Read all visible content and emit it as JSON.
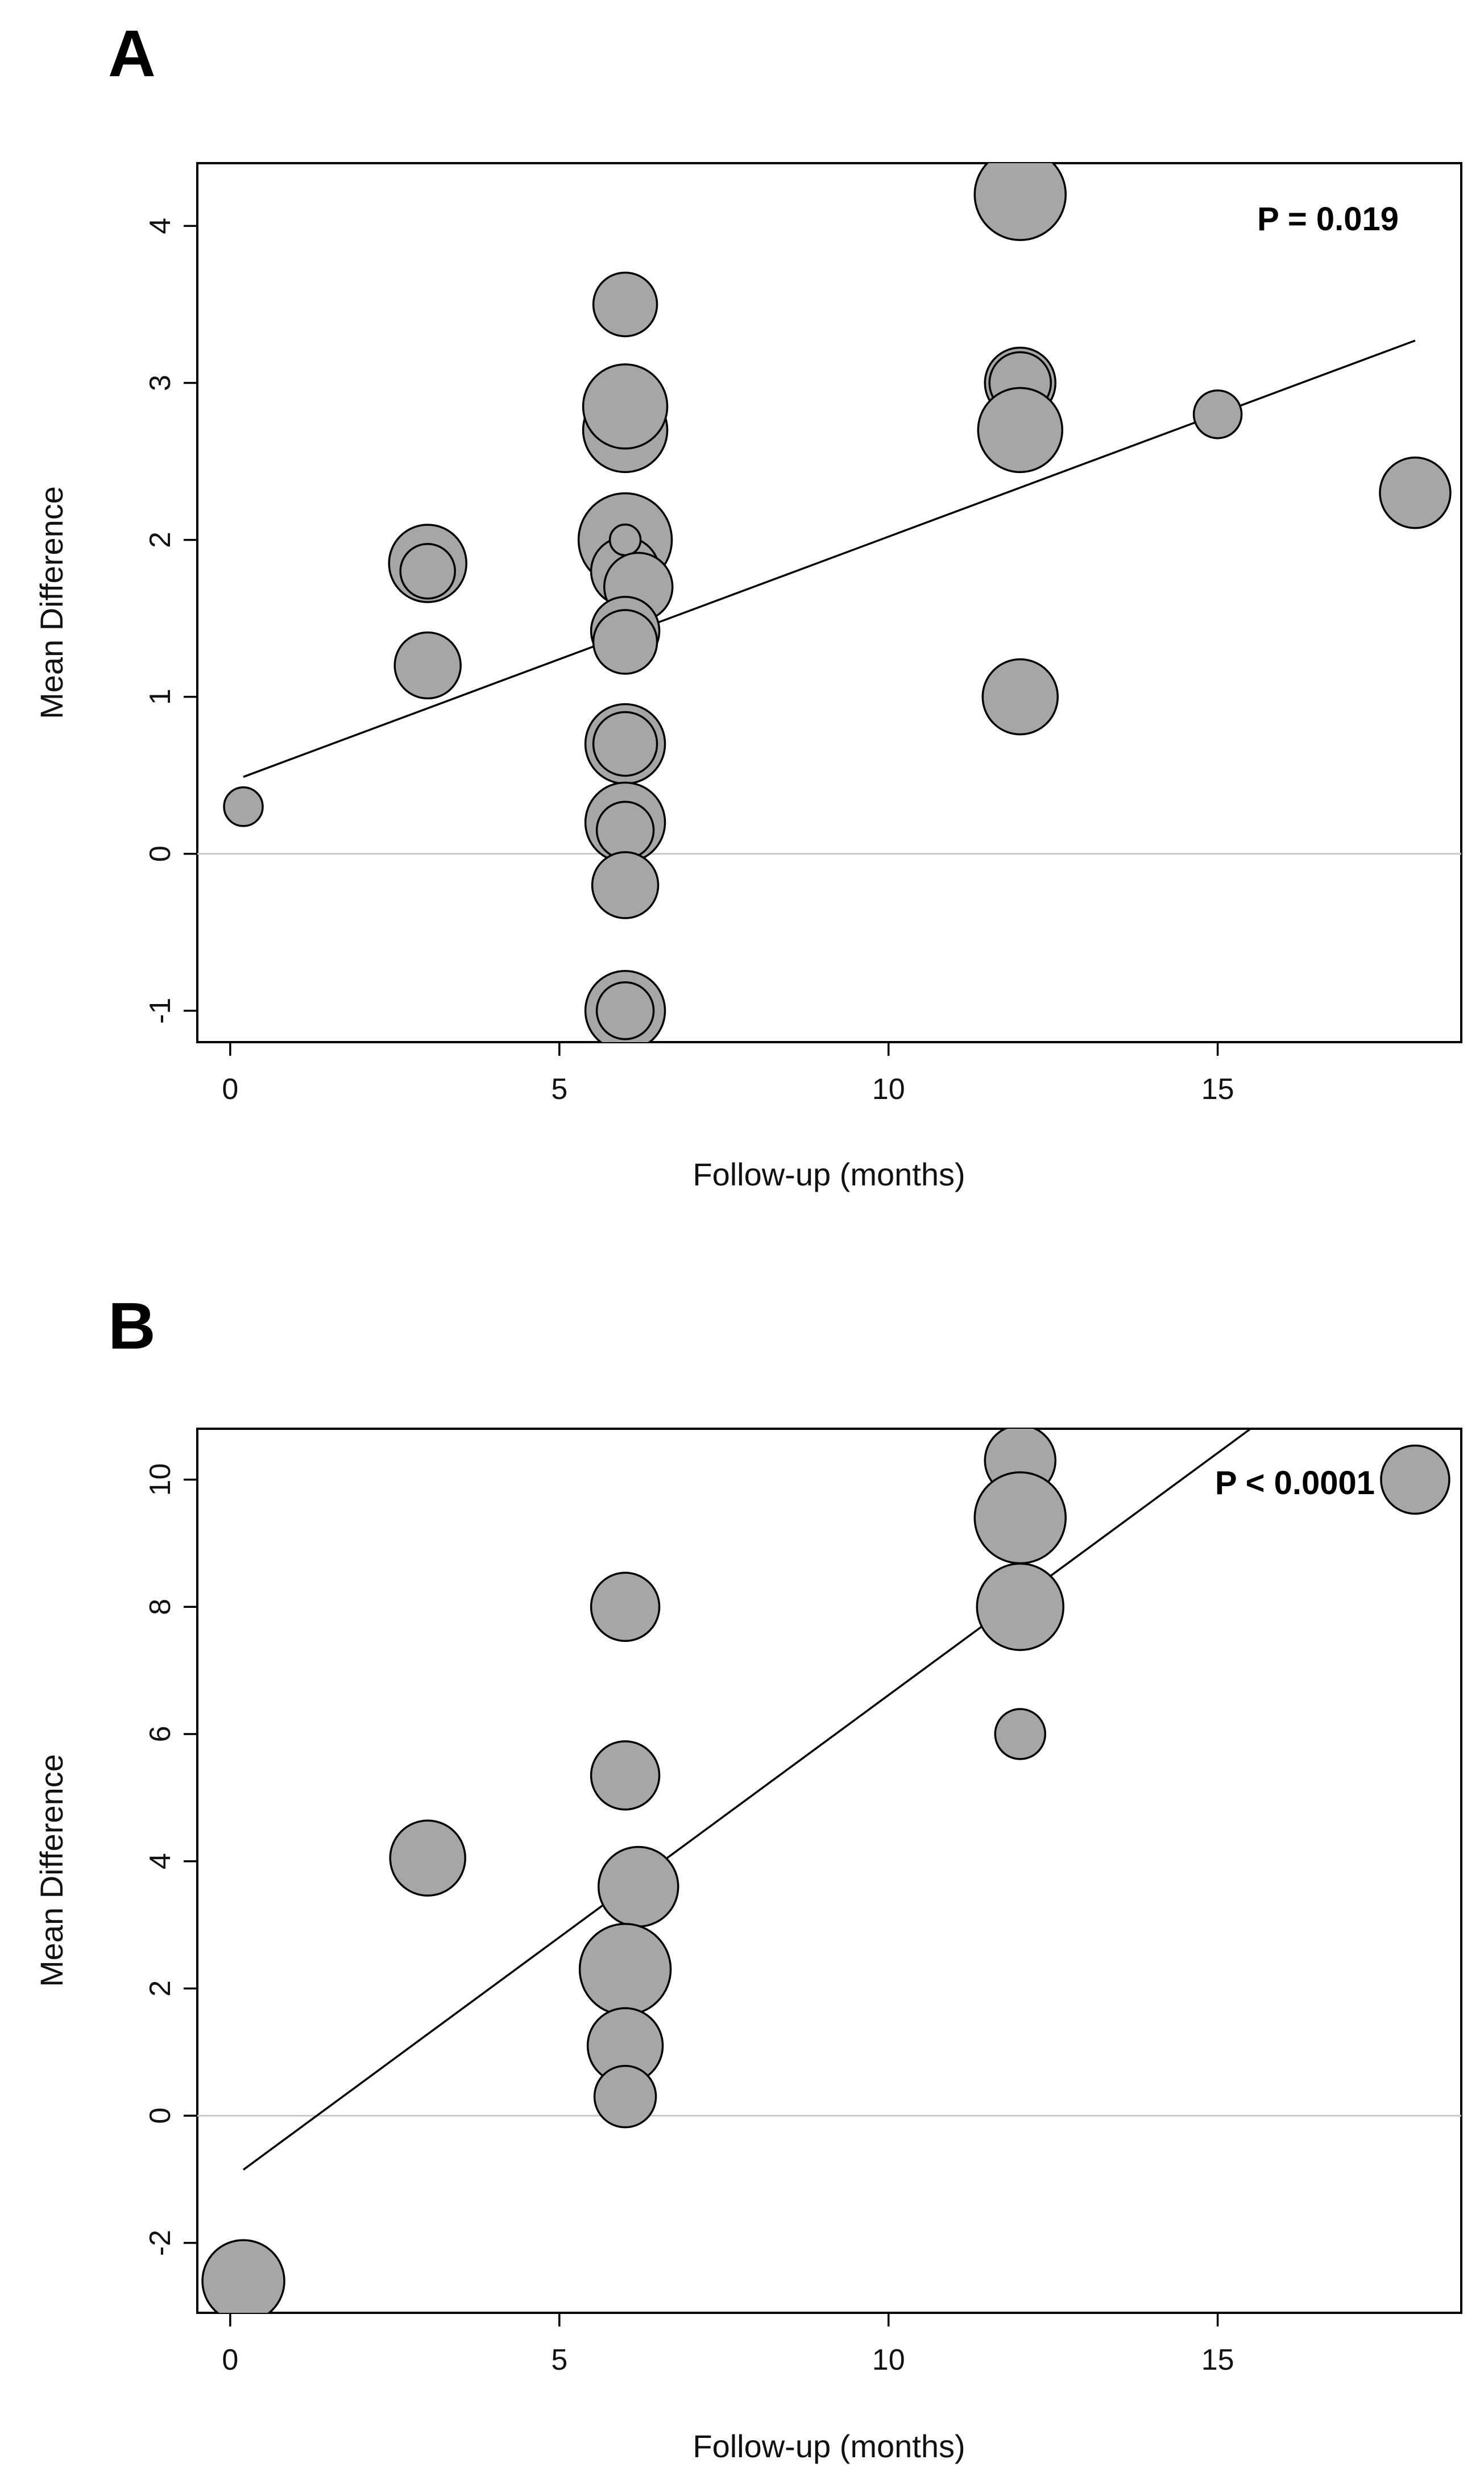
{
  "colors": {
    "bubble_fill": "#a6a6a6",
    "bubble_stroke": "#000000",
    "frame": "#000000",
    "regression_line": "#000000",
    "zero_line": "#c8c8c8"
  },
  "chart_data": [
    {
      "type": "scatter",
      "panel_label": "A",
      "xlabel": "Follow-up (months)",
      "ylabel": "Mean Difference",
      "xlim": [
        -0.5,
        18.7
      ],
      "ylim": [
        -1.2,
        4.4
      ],
      "xticks": [
        0,
        5,
        10,
        15
      ],
      "yticks": [
        -1,
        0,
        1,
        2,
        3,
        4
      ],
      "zero_line": 0,
      "annotation": "P = 0.019",
      "annotation_position": "top-right",
      "regression": {
        "x": [
          0.2,
          18.0
        ],
        "y": [
          0.49,
          3.27
        ]
      },
      "points": [
        {
          "x": 0.2,
          "y": 0.3,
          "size": 0.34
        },
        {
          "x": 3.0,
          "y": 1.85,
          "size": 0.68
        },
        {
          "x": 3.0,
          "y": 1.8,
          "size": 0.48
        },
        {
          "x": 3.0,
          "y": 1.2,
          "size": 0.58
        },
        {
          "x": 6.0,
          "y": 3.5,
          "size": 0.56
        },
        {
          "x": 6.0,
          "y": 2.7,
          "size": 0.74
        },
        {
          "x": 6.0,
          "y": 2.85,
          "size": 0.74
        },
        {
          "x": 6.0,
          "y": 2.0,
          "size": 0.82
        },
        {
          "x": 6.0,
          "y": 1.8,
          "size": 0.6
        },
        {
          "x": 6.0,
          "y": 2.0,
          "size": 0.27
        },
        {
          "x": 6.2,
          "y": 1.7,
          "size": 0.6
        },
        {
          "x": 6.0,
          "y": 1.42,
          "size": 0.6
        },
        {
          "x": 6.0,
          "y": 1.35,
          "size": 0.56
        },
        {
          "x": 6.0,
          "y": 0.7,
          "size": 0.7
        },
        {
          "x": 6.0,
          "y": 0.7,
          "size": 0.56
        },
        {
          "x": 6.0,
          "y": 0.2,
          "size": 0.7
        },
        {
          "x": 6.0,
          "y": 0.15,
          "size": 0.5
        },
        {
          "x": 6.0,
          "y": -0.2,
          "size": 0.58
        },
        {
          "x": 6.0,
          "y": -1.0,
          "size": 0.7
        },
        {
          "x": 6.0,
          "y": -1.0,
          "size": 0.5
        },
        {
          "x": 12.0,
          "y": 4.2,
          "size": 0.8
        },
        {
          "x": 12.0,
          "y": 3.0,
          "size": 0.62
        },
        {
          "x": 12.0,
          "y": 3.0,
          "size": 0.54
        },
        {
          "x": 12.0,
          "y": 2.7,
          "size": 0.74
        },
        {
          "x": 12.0,
          "y": 1.0,
          "size": 0.66
        },
        {
          "x": 15.0,
          "y": 2.8,
          "size": 0.42
        },
        {
          "x": 18.0,
          "y": 2.3,
          "size": 0.62
        }
      ]
    },
    {
      "type": "scatter",
      "panel_label": "B",
      "xlabel": "Follow-up (months)",
      "ylabel": "Mean Difference",
      "xlim": [
        -0.5,
        18.7
      ],
      "ylim": [
        -3.1,
        10.8
      ],
      "xticks": [
        0,
        5,
        10,
        15
      ],
      "yticks": [
        -2,
        0,
        2,
        4,
        6,
        8,
        10
      ],
      "zero_line": 0,
      "annotation": "P < 0.0001",
      "annotation_position": "top-right",
      "regression": {
        "x": [
          0.2,
          15.5
        ],
        "y": [
          -0.85,
          10.8
        ]
      },
      "points": [
        {
          "x": 0.2,
          "y": -2.6,
          "size": 0.72
        },
        {
          "x": 3.0,
          "y": 4.05,
          "size": 0.66
        },
        {
          "x": 6.0,
          "y": 8.0,
          "size": 0.6
        },
        {
          "x": 6.0,
          "y": 5.35,
          "size": 0.6
        },
        {
          "x": 6.2,
          "y": 3.6,
          "size": 0.7
        },
        {
          "x": 6.0,
          "y": 2.3,
          "size": 0.8
        },
        {
          "x": 6.0,
          "y": 1.1,
          "size": 0.66
        },
        {
          "x": 6.0,
          "y": 0.3,
          "size": 0.54
        },
        {
          "x": 12.0,
          "y": 10.3,
          "size": 0.62
        },
        {
          "x": 12.0,
          "y": 9.4,
          "size": 0.8
        },
        {
          "x": 12.0,
          "y": 8.0,
          "size": 0.76
        },
        {
          "x": 12.0,
          "y": 6.0,
          "size": 0.44
        },
        {
          "x": 18.0,
          "y": 10.0,
          "size": 0.6
        }
      ]
    }
  ]
}
